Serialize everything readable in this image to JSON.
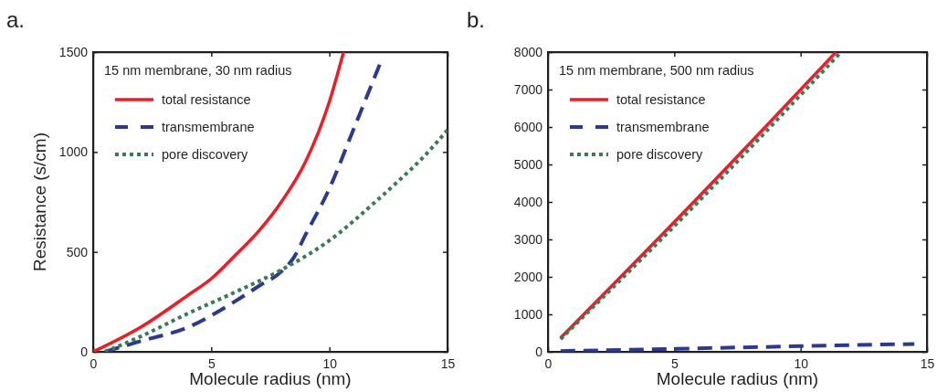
{
  "chart_data": [
    {
      "type": "line",
      "annotations": [
        "a."
      ],
      "xlabel": "Molecule radius (nm)",
      "ylabel": "Resistance (s/cm)",
      "legend_title": "15 nm membrane, 30 nm radius",
      "legend": "top left",
      "xlim": [
        0,
        15
      ],
      "ylim": [
        0,
        1500
      ],
      "xticks": [
        0,
        5,
        10,
        15
      ],
      "yticks": [
        0,
        500,
        1000,
        1500
      ],
      "series": [
        {
          "name": "total resistance",
          "color": "#ee1c24",
          "line_style": "solid",
          "x": [
            0,
            2,
            4,
            5,
            6,
            7,
            8,
            9,
            10,
            10.6
          ],
          "values": [
            0,
            122,
            282,
            366,
            481,
            603,
            756,
            954,
            1252,
            1500
          ]
        },
        {
          "name": "transmembrane",
          "color": "#2b3990",
          "line_style": "dashed",
          "x": [
            0.5,
            2,
            4,
            6,
            7,
            8,
            8.5,
            9,
            10,
            11,
            12.2
          ],
          "values": [
            0,
            53,
            122,
            252,
            328,
            405,
            473,
            588,
            817,
            1107,
            1458
          ]
        },
        {
          "name": "pore discovery",
          "color": "#3c7a55",
          "line_style": "dotted",
          "x": [
            0.5,
            2,
            4,
            6,
            8,
            10,
            12,
            13,
            14,
            15
          ],
          "values": [
            0,
            76,
            191,
            298,
            412,
            557,
            756,
            863,
            977,
            1110
          ]
        }
      ]
    },
    {
      "type": "line",
      "annotations": [
        "b."
      ],
      "xlabel": "Molecule radius (nm)",
      "legend_title": "15 nm membrane, 500 nm radius",
      "legend": "top left",
      "xlim": [
        0,
        15
      ],
      "ylim": [
        0,
        8000
      ],
      "xticks": [
        0,
        5,
        10,
        15
      ],
      "yticks": [
        0,
        1000,
        2000,
        3000,
        4000,
        5000,
        6000,
        7000,
        8000
      ],
      "series": [
        {
          "name": "total resistance",
          "color": "#ee1c24",
          "line_style": "solid",
          "x": [
            0.5,
            6,
            11.4
          ],
          "values": [
            370,
            4160,
            8000
          ]
        },
        {
          "name": "transmembrane",
          "color": "#2b3990",
          "line_style": "dashed",
          "x": [
            0.5,
            5,
            10,
            14.5
          ],
          "values": [
            20,
            80,
            150,
            210
          ]
        },
        {
          "name": "pore discovery",
          "color": "#3c7a55",
          "line_style": "dotted",
          "x": [
            0.5,
            6,
            11.6
          ],
          "values": [
            340,
            4040,
            8000
          ]
        }
      ]
    }
  ]
}
